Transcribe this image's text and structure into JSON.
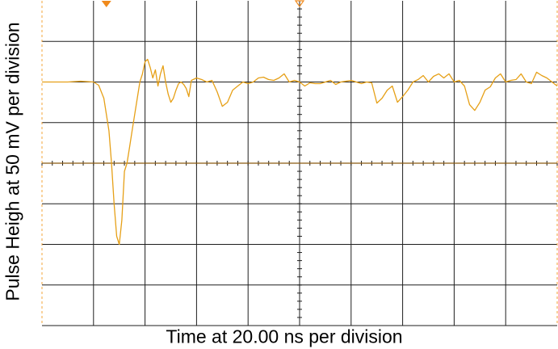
{
  "chart_data": {
    "type": "line",
    "title": "",
    "xlabel": "Time at 20.00 ns per division",
    "ylabel": "Pulse Heigh at 50 mV per division",
    "x_unit": "ns",
    "y_unit": "mV",
    "x_per_division": 20,
    "y_per_division": 50,
    "xlim": [
      0,
      200
    ],
    "ylim": [
      -200,
      200
    ],
    "grid": true,
    "trigger_position_x": 25,
    "series": [
      {
        "x": [
          0,
          5,
          10,
          15,
          20,
          22,
          24,
          26,
          27,
          28,
          29,
          30,
          31,
          32,
          33,
          34,
          35,
          36,
          37,
          38,
          39,
          40,
          41,
          42,
          43,
          44,
          45,
          46,
          47,
          48,
          49,
          50,
          51,
          52,
          53,
          54,
          55,
          56,
          57,
          58,
          60,
          62,
          64,
          66,
          68,
          70,
          72,
          74,
          76,
          78,
          80,
          82,
          84,
          86,
          88,
          90,
          92,
          94,
          96,
          98,
          100,
          102,
          104,
          106,
          108,
          110,
          112,
          114,
          116,
          118,
          120,
          122,
          124,
          126,
          128,
          130,
          132,
          134,
          136,
          138,
          140,
          142,
          144,
          146,
          148,
          150,
          152,
          154,
          156,
          158,
          160,
          162,
          164,
          166,
          168,
          170,
          172,
          174,
          176,
          178,
          180,
          182,
          184,
          186,
          188,
          190,
          192,
          194,
          196,
          198,
          200
        ],
        "y": [
          100,
          100,
          100,
          101,
          100,
          96,
          80,
          40,
          0,
          -50,
          -90,
          -100,
          -70,
          -10,
          0,
          20,
          40,
          60,
          80,
          100,
          110,
          125,
          128,
          118,
          105,
          115,
          95,
          110,
          120,
          100,
          85,
          75,
          80,
          90,
          98,
          100,
          97,
          92,
          82,
          102,
          105,
          103,
          100,
          102,
          88,
          70,
          75,
          90,
          95,
          100,
          98,
          100,
          105,
          106,
          103,
          102,
          105,
          110,
          100,
          102,
          100,
          95,
          99,
          98,
          98,
          100,
          102,
          97,
          100,
          101,
          102,
          100,
          98,
          100,
          99,
          74,
          80,
          90,
          95,
          75,
          82,
          90,
          100,
          103,
          108,
          100,
          107,
          110,
          105,
          110,
          100,
          102,
          95,
          72,
          65,
          75,
          90,
          94,
          105,
          110,
          100,
          102,
          103,
          110,
          100,
          98,
          112,
          108,
          105,
          100,
          95
        ]
      }
    ],
    "colors": {
      "trace": "#e6a017",
      "grid": "#1e1e1e",
      "border": "#f3a43a",
      "marker": "#f08a1c"
    }
  }
}
